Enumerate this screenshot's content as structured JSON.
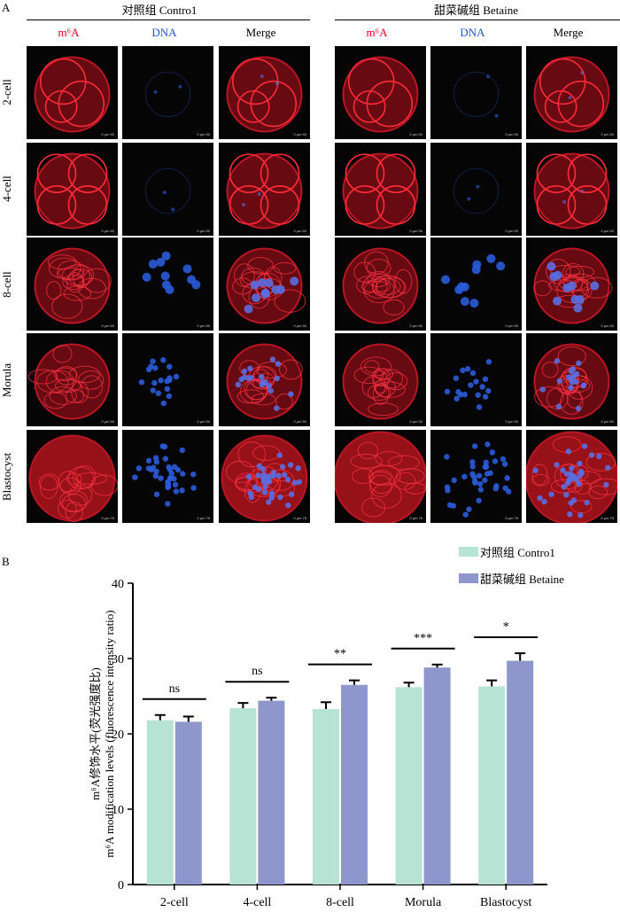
{
  "panel_a": {
    "letter": "A",
    "groups": [
      {
        "title": "对照组 Contro1",
        "columns": [
          "m⁶A",
          "DNA",
          "Merge"
        ]
      },
      {
        "title": "甜菜碱组 Betaine",
        "columns": [
          "m⁶A",
          "DNA",
          "Merge"
        ]
      }
    ],
    "rows": [
      "2-cell",
      "4-cell",
      "8-cell",
      "Morula",
      "Blastocyst"
    ],
    "scale_texts": [
      "0  μm  50",
      "0  μm  50",
      "0  μm  50",
      "0  μm  50",
      "0  μm  75"
    ],
    "colors": {
      "m6a": "#e8001c",
      "dna": "#2255cc"
    }
  },
  "panel_b": {
    "letter": "B",
    "chart_data": {
      "type": "bar",
      "categories": [
        "2-cell",
        "4-cell",
        "8-cell",
        "Morula",
        "Blastocyst"
      ],
      "series": [
        {
          "name": "对照组 Contro1",
          "color": "#b7e3d4",
          "values": [
            21.8,
            23.4,
            23.3,
            26.2,
            26.3
          ],
          "errors": [
            0.7,
            0.7,
            0.9,
            0.6,
            0.8
          ]
        },
        {
          "name": "甜菜碱组 Betaine",
          "color": "#8e96cc",
          "values": [
            21.6,
            24.4,
            26.5,
            28.8,
            29.7
          ],
          "errors": [
            0.7,
            0.4,
            0.6,
            0.4,
            1.0
          ]
        }
      ],
      "significance": [
        "ns",
        "ns",
        "**",
        "***",
        "*"
      ],
      "ylabel_cn": "m⁶A修饰水平(荧光强度比)",
      "ylabel_en": "m⁶A modification levels (fluorescence intensity ratio)",
      "ylim": [
        0,
        40
      ],
      "yticks": [
        0,
        10,
        20,
        30,
        40
      ],
      "legend_position": "top-right",
      "grid": false
    }
  }
}
